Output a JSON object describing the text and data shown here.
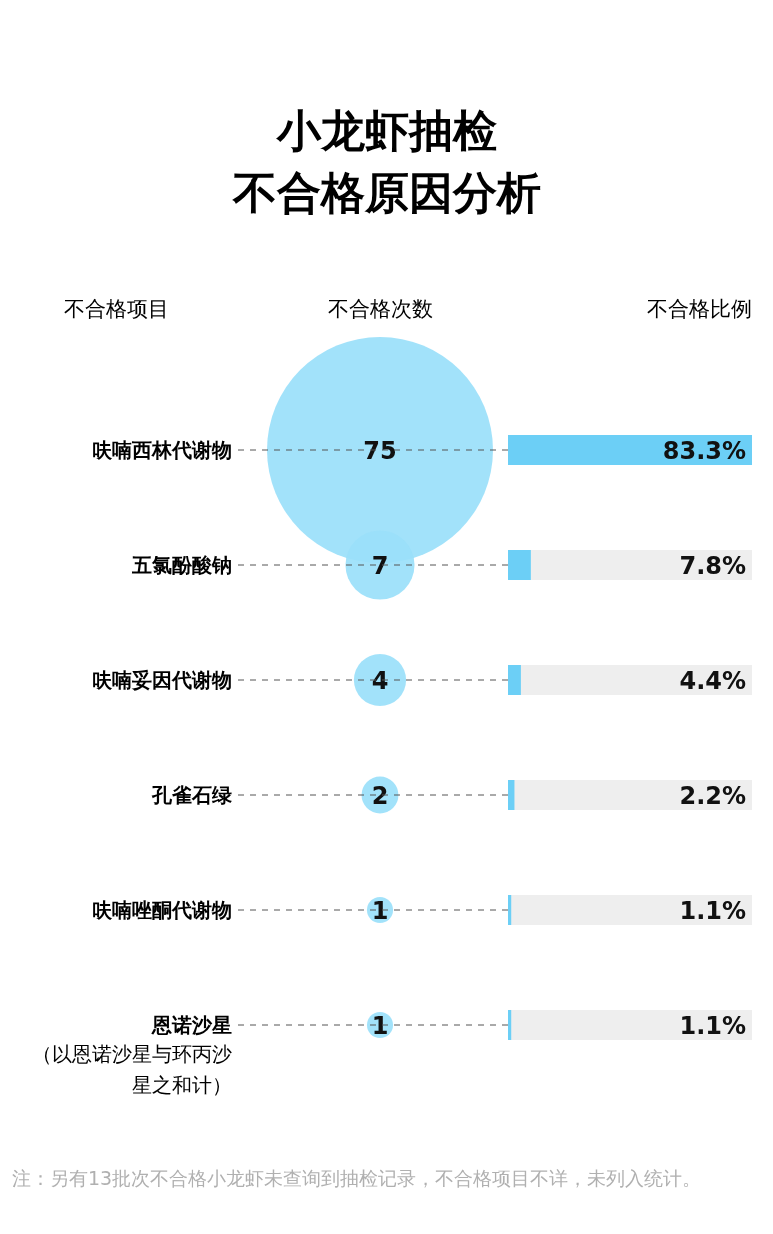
{
  "chart_data": [
    {
      "type": "other",
      "title": "小龙虾抽检不合格原因分析",
      "ylabel": "不合格项目",
      "categories": [
        "呋喃西林代谢物",
        "五氯酚酸钠",
        "呋喃妥因代谢物",
        "孔雀石绿",
        "呋喃唑酮代谢物",
        "恩诺沙星"
      ],
      "series": [
        {
          "name": "不合格次数",
          "color": "#9adffa",
          "values": [
            75,
            7,
            4,
            2,
            1,
            1
          ],
          "value_labels": [
            "75",
            "7",
            "4",
            "2",
            "1",
            "1"
          ]
        }
      ],
      "annotations": [
        {
          "text": "（以恩诺沙星与环丙沙星之和计）",
          "y": "恩诺沙星"
        },
        "注：另有13批次不合格小龙虾未查询到抽检记录，不合格项目不详，未列入统计。"
      ]
    },
    {
      "type": "bar",
      "orientation": "horizontal",
      "categories": [
        null,
        null,
        null,
        null,
        null,
        null
      ],
      "series": [
        {
          "name": "不合格比例",
          "color": "#6ccff6",
          "values": [
            83.3,
            7.8,
            4.4,
            2.2,
            1.1,
            1.1
          ],
          "value_labels": [
            "83.3%",
            "7.8%",
            "4.4%",
            "2.2%",
            "1.1%",
            "1.1%"
          ]
        }
      ]
    }
  ]
}
